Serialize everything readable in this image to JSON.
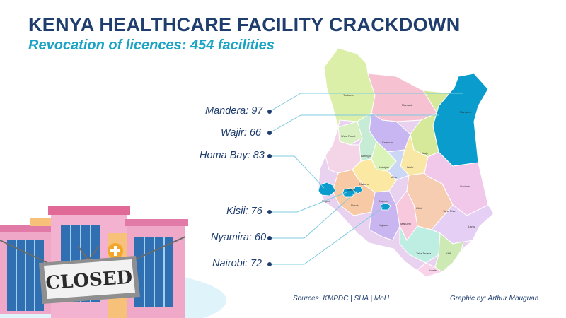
{
  "header": {
    "title": "KENYA HEALTHCARE FACILITY CRACKDOWN",
    "subtitle": "Revocation of licences: 454 facilities"
  },
  "callouts": [
    {
      "county": "Mandera",
      "value": 97,
      "text": "Mandera: 97"
    },
    {
      "county": "Wajir",
      "value": 66,
      "text": "Wajir: 66"
    },
    {
      "county": "Homa Bay",
      "value": 83,
      "text": "Homa Bay: 83"
    },
    {
      "county": "Kisii",
      "value": 76,
      "text": "Kisii: 76"
    },
    {
      "county": "Nyamira",
      "value": 60,
      "text": "Nyamira: 60"
    },
    {
      "county": "Nairobi",
      "value": 72,
      "text": "Nairobi: 72"
    }
  ],
  "illustration": {
    "sign_text": "CLOSED"
  },
  "footer": {
    "sources": "Sources: KMPDC | SHA | MoH",
    "credit": "Graphic by: Arthur Mbuguah"
  },
  "map_labels": [
    "Turkana",
    "Marsabit",
    "Mandera",
    "Wajir",
    "Samburu",
    "Isiolo",
    "Garissa",
    "West Pokot",
    "Baringo",
    "Laikipia",
    "Meru",
    "Kitui",
    "Tana River",
    "Lamu",
    "Kajiado",
    "Makueni",
    "Taita Taveta",
    "Kwale",
    "Kilifi",
    "Narok",
    "Nakuru",
    "Nairobi",
    "Bomet",
    "Migori"
  ],
  "colors": {
    "title": "#1f3e6e",
    "subtitle": "#1aa3c4",
    "highlight": "#0a9ccc",
    "leader_line": "#7ecbe0"
  }
}
